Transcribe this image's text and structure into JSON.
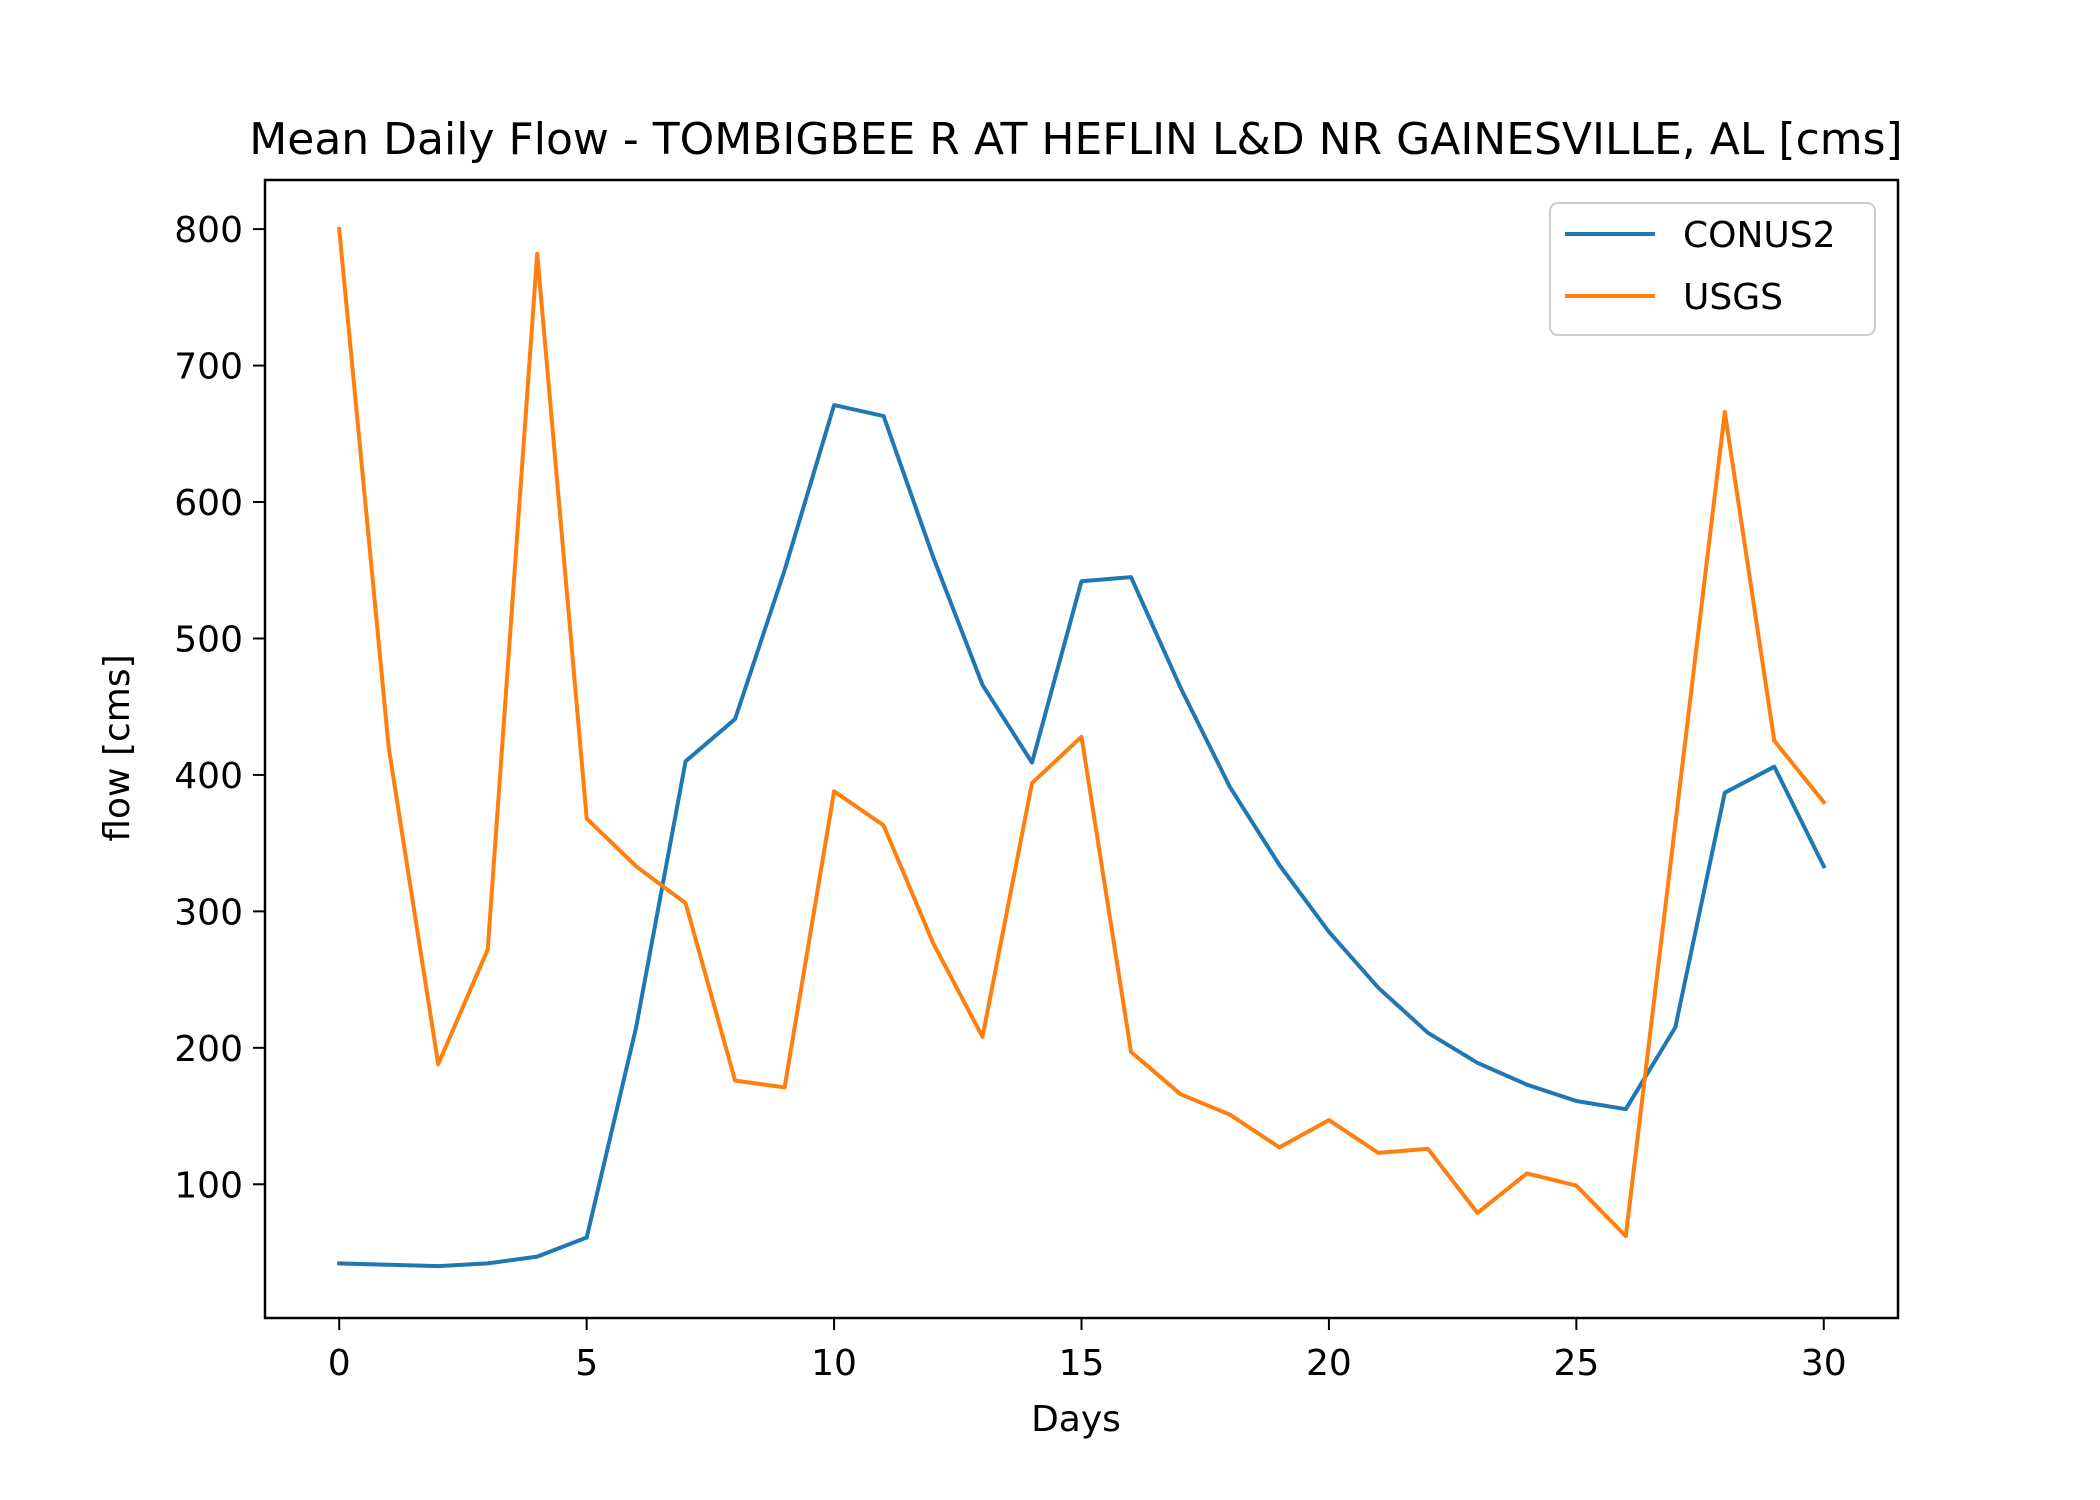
{
  "chart_data": {
    "type": "line",
    "title": "Mean Daily Flow - TOMBIGBEE R AT HEFLIN L&D NR GAINESVILLE, AL [cms]",
    "xlabel": "Days",
    "ylabel": "flow [cms]",
    "xlim": [
      -1.5,
      31.5
    ],
    "ylim": [
      2,
      836
    ],
    "xticks": [
      0,
      5,
      10,
      15,
      20,
      25,
      30
    ],
    "yticks": [
      100,
      200,
      300,
      400,
      500,
      600,
      700,
      800
    ],
    "grid": false,
    "legend_position": "upper right",
    "x": [
      0,
      1,
      2,
      3,
      4,
      5,
      6,
      7,
      8,
      9,
      10,
      11,
      12,
      13,
      14,
      15,
      16,
      17,
      18,
      19,
      20,
      21,
      22,
      23,
      24,
      25,
      26,
      27,
      28,
      29,
      30
    ],
    "series": [
      {
        "name": "CONUS2",
        "color": "#1f77b4",
        "values": [
          42,
          41,
          40,
          42,
          47,
          61,
          215,
          410,
          441,
          550,
          671,
          663,
          560,
          466,
          409,
          542,
          545,
          464,
          391,
          334,
          285,
          244,
          211,
          189,
          173,
          161,
          155,
          215,
          387,
          406,
          333
        ]
      },
      {
        "name": "USGS",
        "color": "#ff7f0e",
        "values": [
          800,
          420,
          188,
          272,
          782,
          368,
          333,
          306,
          176,
          171,
          388,
          363,
          277,
          208,
          394,
          428,
          197,
          166,
          151,
          127,
          147,
          123,
          126,
          79,
          108,
          99,
          62,
          364,
          666,
          425,
          380
        ]
      }
    ]
  }
}
